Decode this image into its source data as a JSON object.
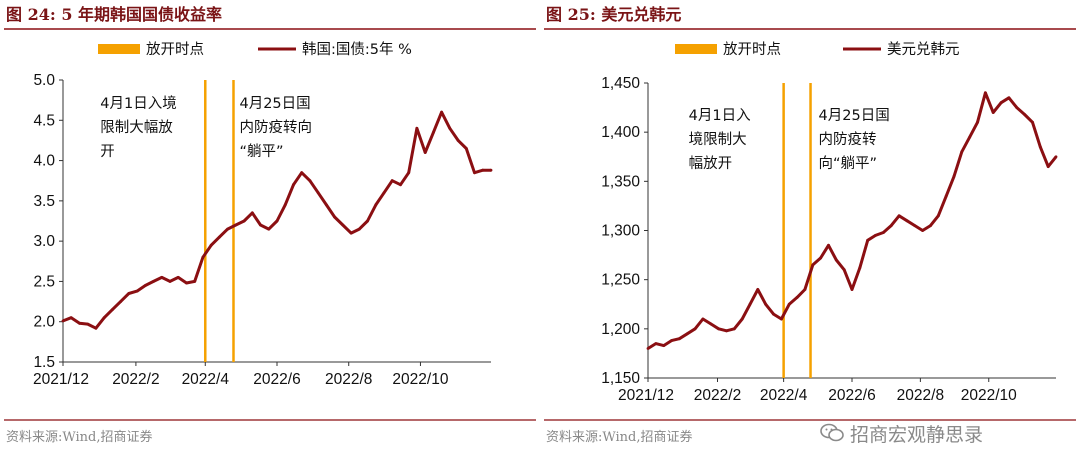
{
  "chart_data": [
    {
      "type": "line",
      "title": "图 24:  5 年期韩国国债收益率",
      "legend": [
        {
          "label": "放开时点",
          "color": "#f5a100",
          "kind": "bar"
        },
        {
          "label": "韩国:国债:5年 %",
          "color": "#8b0f12",
          "kind": "line"
        }
      ],
      "xlim": [
        "2021-12-01",
        "2022-11-30"
      ],
      "xticks": [
        {
          "date": "2021-12-01",
          "label": "2021/12"
        },
        {
          "date": "2022-02-01",
          "label": "2022/2"
        },
        {
          "date": "2022-04-01",
          "label": "2022/4"
        },
        {
          "date": "2022-06-01",
          "label": "2022/6"
        },
        {
          "date": "2022-08-01",
          "label": "2022/8"
        },
        {
          "date": "2022-10-01",
          "label": "2022/10"
        }
      ],
      "ylim": [
        1.5,
        5.0
      ],
      "yticks": [
        {
          "value": 1.5,
          "label": "1.5"
        },
        {
          "value": 2.0,
          "label": "2.0"
        },
        {
          "value": 2.5,
          "label": "2.5"
        },
        {
          "value": 3.0,
          "label": "3.0"
        },
        {
          "value": 3.5,
          "label": "3.5"
        },
        {
          "value": 4.0,
          "label": "4.0"
        },
        {
          "value": 4.5,
          "label": "4.5"
        },
        {
          "value": 5.0,
          "label": "5.0"
        }
      ],
      "vlines": [
        {
          "date": "2022-04-01",
          "color": "#f5a100"
        },
        {
          "date": "2022-04-25",
          "color": "#f5a100"
        }
      ],
      "annotations": [
        {
          "lines": [
            "4月1日入境",
            "限制大幅放",
            "开"
          ],
          "anchor": "left-of-first-line"
        },
        {
          "lines": [
            "4月25日国",
            "内防疫转向",
            "“躺平”"
          ],
          "anchor": "right-of-second-line"
        }
      ],
      "series": [
        {
          "name": "韩国:国债:5年 %",
          "color": "#8b0f12",
          "points": [
            [
              "2021-12-01",
              2.01
            ],
            [
              "2021-12-08",
              2.05
            ],
            [
              "2021-12-15",
              1.98
            ],
            [
              "2021-12-22",
              1.97
            ],
            [
              "2021-12-29",
              1.92
            ],
            [
              "2022-01-05",
              2.05
            ],
            [
              "2022-01-12",
              2.15
            ],
            [
              "2022-01-19",
              2.25
            ],
            [
              "2022-01-26",
              2.35
            ],
            [
              "2022-02-02",
              2.38
            ],
            [
              "2022-02-09",
              2.45
            ],
            [
              "2022-02-16",
              2.5
            ],
            [
              "2022-02-23",
              2.55
            ],
            [
              "2022-03-02",
              2.5
            ],
            [
              "2022-03-09",
              2.55
            ],
            [
              "2022-03-16",
              2.48
            ],
            [
              "2022-03-23",
              2.5
            ],
            [
              "2022-03-30",
              2.8
            ],
            [
              "2022-04-06",
              2.95
            ],
            [
              "2022-04-13",
              3.05
            ],
            [
              "2022-04-20",
              3.15
            ],
            [
              "2022-04-27",
              3.2
            ],
            [
              "2022-05-04",
              3.25
            ],
            [
              "2022-05-11",
              3.35
            ],
            [
              "2022-05-18",
              3.2
            ],
            [
              "2022-05-25",
              3.15
            ],
            [
              "2022-06-01",
              3.25
            ],
            [
              "2022-06-08",
              3.45
            ],
            [
              "2022-06-15",
              3.7
            ],
            [
              "2022-06-22",
              3.85
            ],
            [
              "2022-06-29",
              3.75
            ],
            [
              "2022-07-06",
              3.6
            ],
            [
              "2022-07-13",
              3.45
            ],
            [
              "2022-07-20",
              3.3
            ],
            [
              "2022-07-27",
              3.2
            ],
            [
              "2022-08-03",
              3.1
            ],
            [
              "2022-08-10",
              3.15
            ],
            [
              "2022-08-17",
              3.25
            ],
            [
              "2022-08-24",
              3.45
            ],
            [
              "2022-08-31",
              3.6
            ],
            [
              "2022-09-07",
              3.75
            ],
            [
              "2022-09-14",
              3.7
            ],
            [
              "2022-09-21",
              3.85
            ],
            [
              "2022-09-28",
              4.4
            ],
            [
              "2022-10-05",
              4.1
            ],
            [
              "2022-10-12",
              4.35
            ],
            [
              "2022-10-19",
              4.6
            ],
            [
              "2022-10-26",
              4.4
            ],
            [
              "2022-11-02",
              4.25
            ],
            [
              "2022-11-09",
              4.15
            ],
            [
              "2022-11-16",
              3.85
            ],
            [
              "2022-11-23",
              3.88
            ],
            [
              "2022-11-30",
              3.88
            ]
          ]
        }
      ],
      "source": "资料来源:Wind,招商证券"
    },
    {
      "type": "line",
      "title": "图 25:  美元兑韩元",
      "legend": [
        {
          "label": "放开时点",
          "color": "#f5a100",
          "kind": "bar"
        },
        {
          "label": "美元兑韩元",
          "color": "#8b0f12",
          "kind": "line"
        }
      ],
      "xlim": [
        "2021-12-01",
        "2022-11-30"
      ],
      "xticks": [
        {
          "date": "2021-12-01",
          "label": "2021/12"
        },
        {
          "date": "2022-02-01",
          "label": "2022/2"
        },
        {
          "date": "2022-04-01",
          "label": "2022/4"
        },
        {
          "date": "2022-06-01",
          "label": "2022/6"
        },
        {
          "date": "2022-08-01",
          "label": "2022/8"
        },
        {
          "date": "2022-10-01",
          "label": "2022/10"
        }
      ],
      "ylim": [
        1150,
        1450
      ],
      "yticks": [
        {
          "value": 1150,
          "label": "1,150"
        },
        {
          "value": 1200,
          "label": "1,200"
        },
        {
          "value": 1250,
          "label": "1,250"
        },
        {
          "value": 1300,
          "label": "1,300"
        },
        {
          "value": 1350,
          "label": "1,350"
        },
        {
          "value": 1400,
          "label": "1,400"
        },
        {
          "value": 1450,
          "label": "1,450"
        }
      ],
      "vlines": [
        {
          "date": "2022-04-01",
          "color": "#f5a100"
        },
        {
          "date": "2022-04-25",
          "color": "#f5a100"
        }
      ],
      "annotations": [
        {
          "lines": [
            "4月1日入",
            "境限制大",
            "幅放开"
          ],
          "anchor": "left-of-first-line"
        },
        {
          "lines": [
            "4月25日国",
            "内防疫转",
            "向“躺平”"
          ],
          "anchor": "right-of-second-line"
        }
      ],
      "series": [
        {
          "name": "美元兑韩元",
          "color": "#8b0f12",
          "points": [
            [
              "2021-12-01",
              1180
            ],
            [
              "2021-12-08",
              1185
            ],
            [
              "2021-12-15",
              1183
            ],
            [
              "2021-12-22",
              1188
            ],
            [
              "2021-12-29",
              1190
            ],
            [
              "2022-01-05",
              1195
            ],
            [
              "2022-01-12",
              1200
            ],
            [
              "2022-01-19",
              1210
            ],
            [
              "2022-01-26",
              1205
            ],
            [
              "2022-02-02",
              1200
            ],
            [
              "2022-02-09",
              1198
            ],
            [
              "2022-02-16",
              1200
            ],
            [
              "2022-02-23",
              1210
            ],
            [
              "2022-03-02",
              1225
            ],
            [
              "2022-03-09",
              1240
            ],
            [
              "2022-03-16",
              1225
            ],
            [
              "2022-03-23",
              1215
            ],
            [
              "2022-03-30",
              1210
            ],
            [
              "2022-04-06",
              1225
            ],
            [
              "2022-04-13",
              1232
            ],
            [
              "2022-04-20",
              1240
            ],
            [
              "2022-04-27",
              1265
            ],
            [
              "2022-05-04",
              1272
            ],
            [
              "2022-05-11",
              1285
            ],
            [
              "2022-05-18",
              1270
            ],
            [
              "2022-05-25",
              1260
            ],
            [
              "2022-06-01",
              1240
            ],
            [
              "2022-06-08",
              1262
            ],
            [
              "2022-06-15",
              1290
            ],
            [
              "2022-06-22",
              1295
            ],
            [
              "2022-06-29",
              1298
            ],
            [
              "2022-07-06",
              1305
            ],
            [
              "2022-07-13",
              1315
            ],
            [
              "2022-07-20",
              1310
            ],
            [
              "2022-07-27",
              1305
            ],
            [
              "2022-08-03",
              1300
            ],
            [
              "2022-08-10",
              1305
            ],
            [
              "2022-08-17",
              1315
            ],
            [
              "2022-08-24",
              1335
            ],
            [
              "2022-08-31",
              1355
            ],
            [
              "2022-09-07",
              1380
            ],
            [
              "2022-09-14",
              1395
            ],
            [
              "2022-09-21",
              1410
            ],
            [
              "2022-09-28",
              1440
            ],
            [
              "2022-10-05",
              1420
            ],
            [
              "2022-10-12",
              1430
            ],
            [
              "2022-10-19",
              1435
            ],
            [
              "2022-10-26",
              1425
            ],
            [
              "2022-11-02",
              1418
            ],
            [
              "2022-11-09",
              1410
            ],
            [
              "2022-11-16",
              1385
            ],
            [
              "2022-11-23",
              1365
            ],
            [
              "2022-11-30",
              1375
            ]
          ]
        }
      ],
      "source": "资料来源:Wind,招商证券"
    }
  ],
  "watermark": {
    "text": "招商宏观静思录",
    "icon": "wechat-icon"
  }
}
